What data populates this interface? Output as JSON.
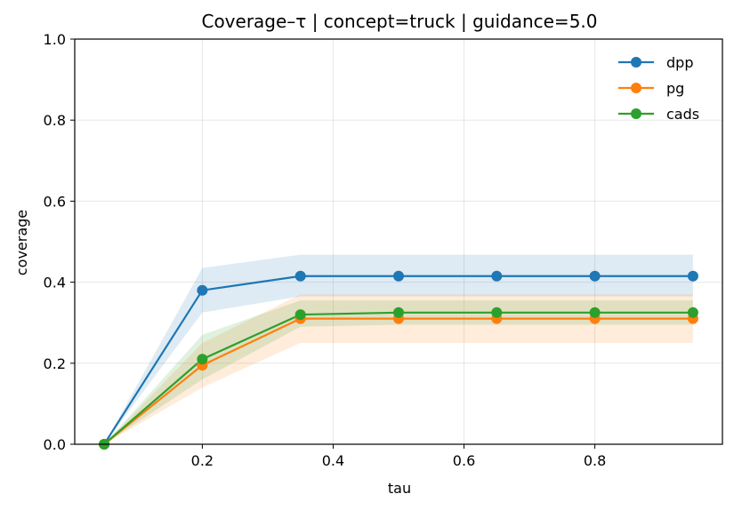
{
  "chart_data": {
    "type": "line",
    "title": "Coverage–τ | concept=truck | guidance=5.0",
    "xlabel": "tau",
    "ylabel": "coverage",
    "xlim": [
      0.005,
      0.995
    ],
    "ylim": [
      0.0,
      1.0
    ],
    "x_ticks": [
      0.2,
      0.4,
      0.6,
      0.8
    ],
    "x_tick_labels": [
      "0.2",
      "0.4",
      "0.6",
      "0.8"
    ],
    "y_ticks": [
      0.0,
      0.2,
      0.4,
      0.6,
      0.8,
      1.0
    ],
    "y_tick_labels": [
      "0.0",
      "0.2",
      "0.4",
      "0.6",
      "0.8",
      "1.0"
    ],
    "grid": true,
    "legend_position": "top-right",
    "x": [
      0.05,
      0.2,
      0.35,
      0.5,
      0.65,
      0.8,
      0.95
    ],
    "series": [
      {
        "name": "dpp",
        "color": "#1f77b4",
        "values": [
          0.0,
          0.38,
          0.415,
          0.415,
          0.415,
          0.415,
          0.415
        ],
        "band_low": [
          0.0,
          0.325,
          0.365,
          0.365,
          0.365,
          0.365,
          0.365
        ],
        "band_high": [
          0.0,
          0.435,
          0.468,
          0.468,
          0.468,
          0.468,
          0.468
        ]
      },
      {
        "name": "pg",
        "color": "#ff7f0e",
        "values": [
          0.0,
          0.195,
          0.31,
          0.31,
          0.31,
          0.31,
          0.31
        ],
        "band_low": [
          0.0,
          0.14,
          0.25,
          0.25,
          0.25,
          0.25,
          0.25
        ],
        "band_high": [
          0.0,
          0.25,
          0.37,
          0.37,
          0.37,
          0.37,
          0.37
        ]
      },
      {
        "name": "cads",
        "color": "#2ca02c",
        "values": [
          0.0,
          0.21,
          0.32,
          0.325,
          0.325,
          0.325,
          0.325
        ],
        "band_low": [
          0.0,
          0.16,
          0.29,
          0.295,
          0.295,
          0.295,
          0.295
        ],
        "band_high": [
          0.0,
          0.27,
          0.355,
          0.355,
          0.355,
          0.355,
          0.355
        ]
      }
    ]
  }
}
